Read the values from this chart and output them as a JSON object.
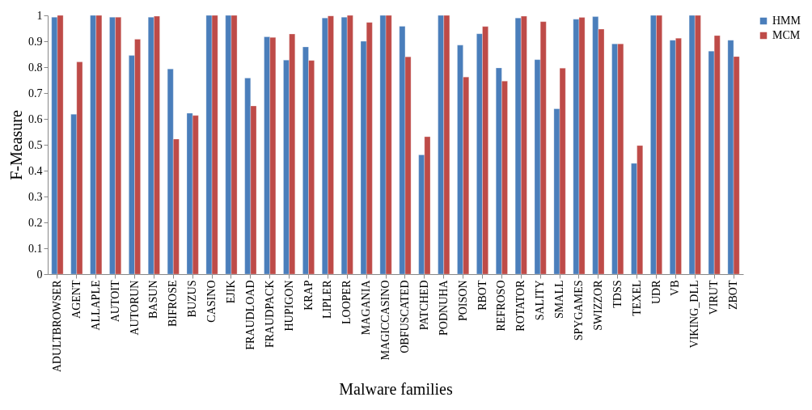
{
  "chart_data": {
    "type": "bar",
    "xlabel": "Malware families",
    "ylabel": "F-Measure",
    "categories": [
      "ADULTBROWSER",
      "AGENT",
      "ALLAPLE",
      "AUTOIT",
      "AUTORUN",
      "BASUN",
      "BIFROSE",
      "BUZUS",
      "CASINO",
      "EJIK",
      "FRAUDLOAD",
      "FRAUDPACK",
      "HUPIGON",
      "KRAP",
      "LIPLER",
      "LOOPER",
      "MAGANIA",
      "MAGICCASINO",
      "OBFUSCATED",
      "PATCHED",
      "PODNUHA",
      "POISON",
      "RBOT",
      "REFROSO",
      "ROTATOR",
      "SALITY",
      "SMALL",
      "SPYGAMES",
      "SWIZZOR",
      "TDSS",
      "TEXEL",
      "UDR",
      "VB",
      "VIKING_DLL",
      "VIRUT",
      "ZBOT"
    ],
    "series": [
      {
        "name": "HMM",
        "color": "#4a7ebb",
        "values": [
          0.993,
          0.618,
          1,
          0.993,
          0.845,
          0.993,
          0.793,
          0.622,
          1,
          1,
          0.758,
          0.917,
          0.827,
          0.878,
          0.99,
          0.993,
          0.9,
          1,
          0.958,
          0.461,
          1,
          0.885,
          0.929,
          0.797,
          0.99,
          0.829,
          0.639,
          0.985,
          0.995,
          0.89,
          0.428,
          1,
          0.904,
          1,
          0.862,
          0.904
        ]
      },
      {
        "name": "MCM",
        "color": "#be4b48",
        "values": [
          1,
          0.82,
          1,
          0.993,
          0.908,
          0.997,
          0.522,
          0.613,
          1,
          1,
          0.65,
          0.915,
          0.928,
          0.826,
          0.998,
          1,
          0.973,
          1,
          0.84,
          0.531,
          1,
          0.762,
          0.957,
          0.746,
          0.997,
          0.976,
          0.796,
          0.992,
          0.947,
          0.89,
          0.497,
          1,
          0.912,
          1,
          0.922,
          0.841
        ]
      }
    ],
    "ylim": [
      0,
      1
    ],
    "yticks": [
      0,
      0.1,
      0.2,
      0.3,
      0.4,
      0.5,
      0.6,
      0.7,
      0.8,
      0.9,
      1
    ],
    "grid": false,
    "legend": "right"
  }
}
